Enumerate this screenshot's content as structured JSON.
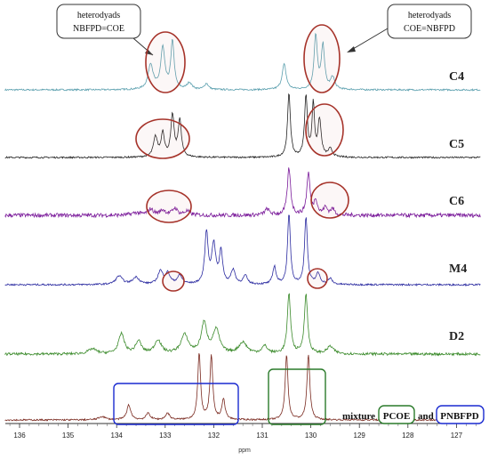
{
  "chart_data": {
    "type": "line",
    "title": "",
    "xlabel": "ppm",
    "ylabel": "",
    "xlim": [
      136.4,
      126.5
    ],
    "x_reversed": true,
    "x_ticks": [
      "136",
      "135",
      "134",
      "133",
      "132",
      "131",
      "130",
      "129",
      "128",
      "127"
    ],
    "grid": false,
    "series": [
      {
        "name": "C4",
        "color": "#5a9fae",
        "noise": 0.012,
        "peaks": [
          [
            133.3,
            0.38,
            0.06
          ],
          [
            133.05,
            0.62,
            0.05
          ],
          [
            132.85,
            0.72,
            0.04
          ],
          [
            132.5,
            0.1,
            0.06
          ],
          [
            132.15,
            0.09,
            0.05
          ],
          [
            130.55,
            0.38,
            0.05
          ],
          [
            129.9,
            0.8,
            0.04
          ],
          [
            129.75,
            0.65,
            0.04
          ],
          [
            129.55,
            0.18,
            0.05
          ]
        ]
      },
      {
        "name": "C5",
        "color": "#222222",
        "noise": 0.012,
        "peaks": [
          [
            133.2,
            0.3,
            0.05
          ],
          [
            133.05,
            0.36,
            0.04
          ],
          [
            132.85,
            0.62,
            0.04
          ],
          [
            132.7,
            0.55,
            0.04
          ],
          [
            130.45,
            0.95,
            0.035
          ],
          [
            130.1,
            0.9,
            0.035
          ],
          [
            129.95,
            0.78,
            0.03
          ],
          [
            129.82,
            0.55,
            0.04
          ],
          [
            129.6,
            0.12,
            0.05
          ]
        ]
      },
      {
        "name": "C6",
        "color": "#7a1a9a",
        "noise": 0.04,
        "peaks": [
          [
            133.6,
            0.05,
            0.1
          ],
          [
            133.3,
            0.12,
            0.07
          ],
          [
            133.05,
            0.1,
            0.07
          ],
          [
            132.8,
            0.14,
            0.06
          ],
          [
            132.55,
            0.08,
            0.07
          ],
          [
            130.9,
            0.12,
            0.06
          ],
          [
            130.45,
            0.95,
            0.04
          ],
          [
            130.05,
            0.85,
            0.04
          ],
          [
            129.9,
            0.3,
            0.04
          ],
          [
            129.7,
            0.15,
            0.05
          ],
          [
            129.55,
            0.12,
            0.05
          ]
        ]
      },
      {
        "name": "M4",
        "color": "#2a2aa0",
        "noise": 0.012,
        "peaks": [
          [
            133.95,
            0.12,
            0.08
          ],
          [
            133.6,
            0.1,
            0.08
          ],
          [
            133.1,
            0.18,
            0.06
          ],
          [
            132.95,
            0.15,
            0.06
          ],
          [
            132.7,
            0.12,
            0.06
          ],
          [
            132.15,
            0.72,
            0.04
          ],
          [
            132.0,
            0.55,
            0.05
          ],
          [
            131.85,
            0.45,
            0.04
          ],
          [
            131.6,
            0.2,
            0.05
          ],
          [
            131.35,
            0.12,
            0.05
          ],
          [
            130.75,
            0.25,
            0.04
          ],
          [
            130.45,
            0.98,
            0.035
          ],
          [
            130.1,
            0.95,
            0.035
          ],
          [
            129.85,
            0.15,
            0.05
          ],
          [
            129.6,
            0.08,
            0.05
          ]
        ]
      },
      {
        "name": "D2",
        "color": "#3a8a2a",
        "noise": 0.02,
        "peaks": [
          [
            134.5,
            0.08,
            0.1
          ],
          [
            133.9,
            0.32,
            0.07
          ],
          [
            133.55,
            0.2,
            0.07
          ],
          [
            133.15,
            0.22,
            0.08
          ],
          [
            132.6,
            0.3,
            0.09
          ],
          [
            132.2,
            0.48,
            0.07
          ],
          [
            131.95,
            0.38,
            0.08
          ],
          [
            131.4,
            0.18,
            0.1
          ],
          [
            130.95,
            0.12,
            0.07
          ],
          [
            130.45,
            0.95,
            0.04
          ],
          [
            130.1,
            0.95,
            0.04
          ],
          [
            129.6,
            0.12,
            0.08
          ]
        ]
      },
      {
        "name": "mixture",
        "color": "#7a2a20",
        "noise": 0.012,
        "peaks": [
          [
            134.3,
            0.05,
            0.08
          ],
          [
            133.75,
            0.22,
            0.05
          ],
          [
            133.35,
            0.1,
            0.05
          ],
          [
            132.95,
            0.1,
            0.05
          ],
          [
            132.3,
            0.98,
            0.035
          ],
          [
            132.05,
            0.95,
            0.035
          ],
          [
            131.8,
            0.3,
            0.04
          ],
          [
            130.5,
            0.98,
            0.035
          ],
          [
            130.05,
            0.98,
            0.035
          ]
        ]
      }
    ],
    "annotations": {
      "callout_left": [
        "heterodyads",
        "NBFPD=COE"
      ],
      "callout_right": [
        "heterodyads",
        "COE=NBFPD"
      ],
      "legend_prefix": "mixture",
      "legend_pcoe": "PCOE",
      "legend_and": "and",
      "legend_pnbfpd": "PNBFPD"
    }
  }
}
